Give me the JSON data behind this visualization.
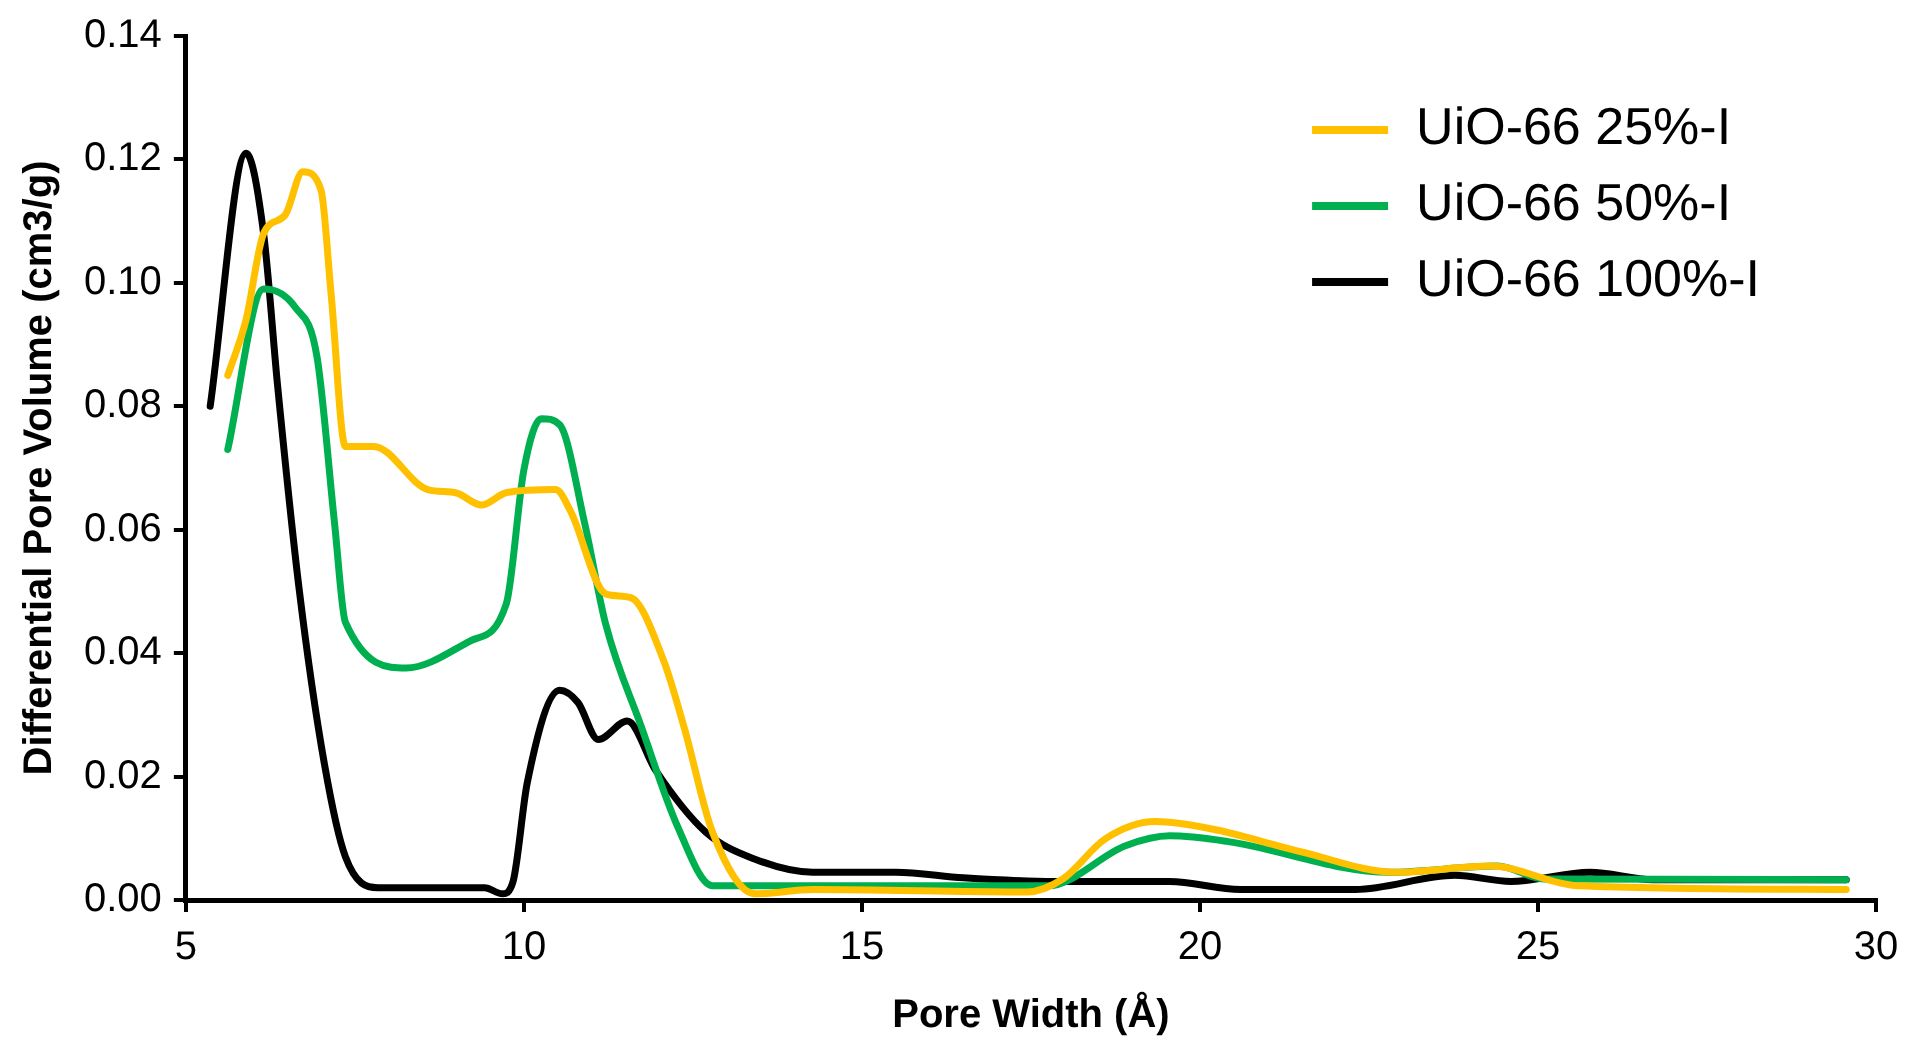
{
  "chart_data": {
    "type": "line",
    "xlabel": "Pore Width (Å)",
    "ylabel": "Differential Pore Volume (cm3/g)",
    "xlim": [
      5,
      30
    ],
    "xticks": [
      5,
      10,
      15,
      20,
      25,
      30
    ],
    "ylim": [
      0,
      0.14
    ],
    "yticks": [
      {
        "value": 0,
        "label": "0.00"
      },
      {
        "value": 0.02,
        "label": "0.02"
      },
      {
        "value": 0.04,
        "label": "0.04"
      },
      {
        "value": 0.06,
        "label": "0.06"
      },
      {
        "value": 0.08,
        "label": "0.08"
      },
      {
        "value": 0.1,
        "label": "0.10"
      },
      {
        "value": 0.12,
        "label": "0.12"
      },
      {
        "value": 0.14,
        "label": "0.14"
      }
    ],
    "grid": false,
    "legend": "top right",
    "marker": "none",
    "line_style": "solid",
    "series": [
      {
        "name": "UiO-66 25%-I",
        "color": "#ffc000",
        "x": [
          5.62,
          5.89,
          6.15,
          6.47,
          6.73,
          7.0,
          7.15,
          7.36,
          7.78,
          8.58,
          8.99,
          9.37,
          9.74,
          10.47,
          10.69,
          11.21,
          11.58,
          12.06,
          12.37,
          12.79,
          13.42,
          14.27,
          17.44,
          17.97,
          18.6,
          19.34,
          20.18,
          21.5,
          22.9,
          24.3,
          25.6,
          29.56
        ],
        "values": [
          0.085,
          0.094,
          0.108,
          0.111,
          0.118,
          0.115,
          0.098,
          0.0735,
          0.0735,
          0.0665,
          0.066,
          0.064,
          0.066,
          0.0665,
          0.063,
          0.0496,
          0.049,
          0.039,
          0.028,
          0.011,
          0.001,
          0.0017,
          0.0013,
          0.0034,
          0.0099,
          0.0127,
          0.0115,
          0.0078,
          0.0045,
          0.0055,
          0.0023,
          0.0017
        ]
      },
      {
        "name": "UiO-66 50%-I",
        "color": "#00b050",
        "x": [
          5.62,
          6.15,
          6.62,
          6.94,
          7.2,
          7.36,
          8.26,
          9.21,
          9.74,
          10.0,
          10.26,
          10.53,
          10.9,
          11.21,
          11.74,
          12.27,
          12.79,
          13.4,
          17.75,
          18.9,
          19.55,
          20.4,
          22.8,
          24.4,
          25.1,
          29.56
        ],
        "values": [
          0.073,
          0.099,
          0.096,
          0.088,
          0.061,
          0.045,
          0.0376,
          0.042,
          0.048,
          0.0697,
          0.078,
          0.077,
          0.061,
          0.0447,
          0.028,
          0.012,
          0.0023,
          0.0023,
          0.0023,
          0.0088,
          0.0104,
          0.0095,
          0.0045,
          0.0055,
          0.0034,
          0.0033
        ]
      },
      {
        "name": "UiO-66 100%-I",
        "color": "#000000",
        "x": [
          5.36,
          5.89,
          6.15,
          6.36,
          6.68,
          7.05,
          7.36,
          7.84,
          9.42,
          9.68,
          9.84,
          10.05,
          10.53,
          10.8,
          11.1,
          11.53,
          11.95,
          12.69,
          13.42,
          14.27,
          15.5,
          16.5,
          17.85,
          19.55,
          20.6,
          22.3,
          23.77,
          24.6,
          25.77,
          26.7,
          29.56
        ],
        "values": [
          0.08,
          0.121,
          0.108,
          0.083,
          0.05,
          0.022,
          0.007,
          0.002,
          0.002,
          0.001,
          0.003,
          0.019,
          0.034,
          0.032,
          0.026,
          0.029,
          0.021,
          0.011,
          0.0066,
          0.0045,
          0.0045,
          0.0036,
          0.003,
          0.003,
          0.0017,
          0.0017,
          0.004,
          0.003,
          0.0045,
          0.0033,
          0.0033
        ]
      }
    ]
  }
}
